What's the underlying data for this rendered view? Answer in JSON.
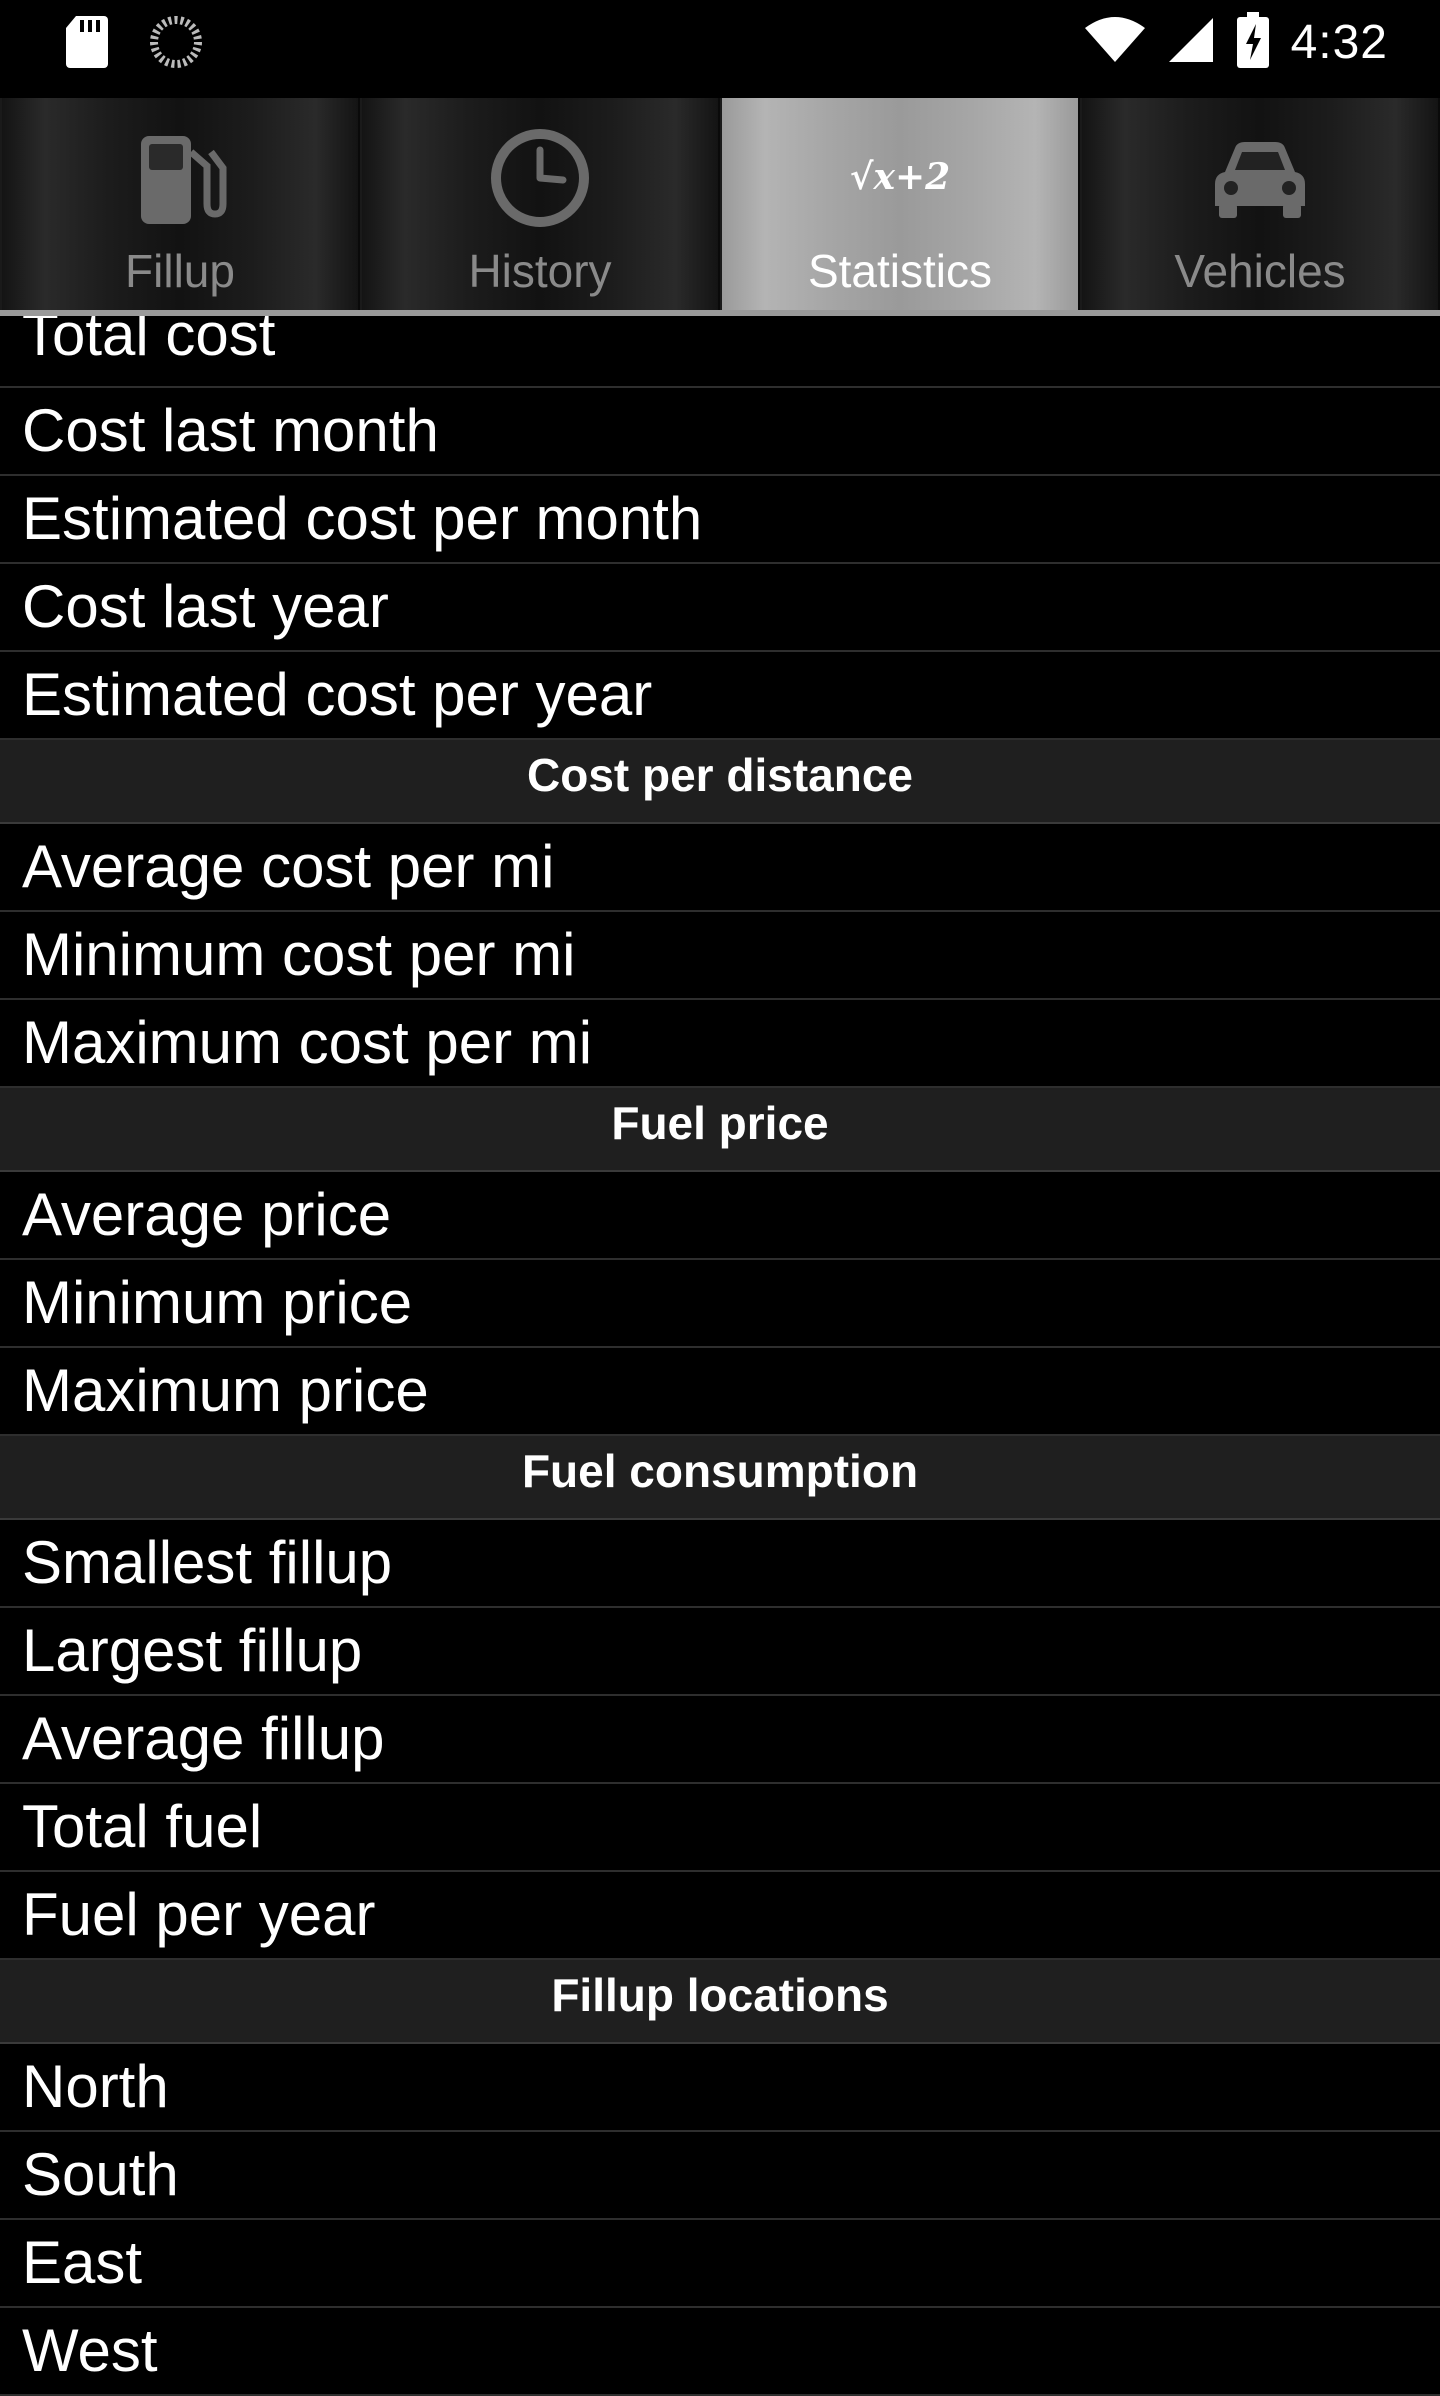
{
  "status_bar": {
    "time": "4:32",
    "icons": [
      "sd-card-icon",
      "sync-spinner-icon",
      "wifi-icon",
      "cell-signal-icon",
      "battery-charging-icon"
    ]
  },
  "tabs": [
    {
      "label": "Fillup",
      "icon": "fuel-pump-icon",
      "active": false
    },
    {
      "label": "History",
      "icon": "clock-icon",
      "active": false
    },
    {
      "label": "Statistics",
      "icon": "formula-icon",
      "icon_text": "√x+2",
      "active": true
    },
    {
      "label": "Vehicles",
      "icon": "car-icon",
      "active": false
    }
  ],
  "stats": {
    "cost_top": [
      "Total cost",
      "Cost last month",
      "Estimated cost per month",
      "Cost last year",
      "Estimated cost per year"
    ],
    "cost_per_distance": {
      "header": "Cost per distance",
      "items": [
        "Average cost per mi",
        "Minimum cost per mi",
        "Maximum cost per mi"
      ]
    },
    "fuel_price": {
      "header": "Fuel price",
      "items": [
        "Average price",
        "Minimum price",
        "Maximum price"
      ]
    },
    "fuel_consumption": {
      "header": "Fuel consumption",
      "items": [
        "Smallest fillup",
        "Largest fillup",
        "Average fillup",
        "Total fuel",
        "Fuel per year"
      ]
    },
    "fillup_locations": {
      "header": "Fillup locations",
      "items": [
        "North",
        "South",
        "East",
        "West"
      ]
    }
  },
  "colors": {
    "background": "#000000",
    "section_header_bg": "#1f1f1f",
    "active_tab_bg": "#a6a6a6",
    "inactive_tab_text": "#8a8a8a"
  }
}
